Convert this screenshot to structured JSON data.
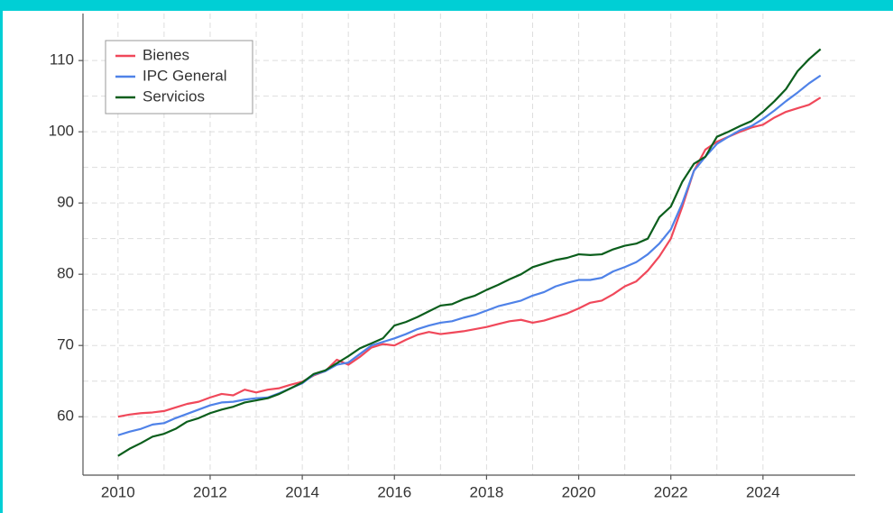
{
  "chart_data": {
    "type": "line",
    "x": [
      2010,
      2010.25,
      2010.5,
      2010.75,
      2011,
      2011.25,
      2011.5,
      2011.75,
      2012,
      2012.25,
      2012.5,
      2012.75,
      2013,
      2013.25,
      2013.5,
      2013.75,
      2014,
      2014.25,
      2014.5,
      2014.75,
      2015,
      2015.25,
      2015.5,
      2015.75,
      2016,
      2016.25,
      2016.5,
      2016.75,
      2017,
      2017.25,
      2017.5,
      2017.75,
      2018,
      2018.25,
      2018.5,
      2018.75,
      2019,
      2019.25,
      2019.5,
      2019.75,
      2020,
      2020.25,
      2020.5,
      2020.75,
      2021,
      2021.25,
      2021.5,
      2021.75,
      2022,
      2022.25,
      2022.5,
      2022.75,
      2023,
      2023.25,
      2023.5,
      2023.75,
      2024,
      2024.25,
      2024.5,
      2024.75,
      2025,
      2025.25
    ],
    "series": [
      {
        "name": "Bienes",
        "color": "#f0485a",
        "values": [
          60.0,
          60.3,
          60.5,
          60.6,
          60.8,
          61.3,
          61.8,
          62.1,
          62.7,
          63.2,
          63.0,
          63.8,
          63.4,
          63.8,
          64.0,
          64.5,
          64.9,
          65.8,
          66.4,
          68.0,
          67.3,
          68.4,
          69.7,
          70.2,
          70.0,
          70.8,
          71.5,
          71.9,
          71.6,
          71.8,
          72.0,
          72.3,
          72.6,
          73.0,
          73.4,
          73.6,
          73.2,
          73.5,
          74.0,
          74.5,
          75.2,
          76.0,
          76.3,
          77.2,
          78.3,
          79.0,
          80.5,
          82.5,
          85.0,
          89.5,
          94.5,
          97.5,
          98.6,
          99.3,
          100.0,
          100.6,
          101.0,
          102.0,
          102.8,
          103.3,
          103.8,
          104.8
        ]
      },
      {
        "name": "IPC General",
        "color": "#4f82e8",
        "values": [
          57.4,
          57.9,
          58.3,
          58.9,
          59.1,
          59.8,
          60.4,
          61.0,
          61.6,
          62.0,
          62.1,
          62.4,
          62.6,
          62.7,
          63.3,
          64.0,
          64.7,
          65.9,
          66.4,
          67.3,
          67.6,
          68.8,
          70.0,
          70.5,
          71.0,
          71.6,
          72.3,
          72.8,
          73.2,
          73.4,
          73.9,
          74.3,
          74.9,
          75.5,
          75.9,
          76.3,
          77.0,
          77.5,
          78.3,
          78.8,
          79.2,
          79.2,
          79.5,
          80.4,
          81.0,
          81.7,
          82.8,
          84.3,
          86.3,
          90.0,
          94.5,
          96.5,
          98.3,
          99.3,
          100.2,
          100.8,
          101.8,
          103.0,
          104.3,
          105.5,
          106.8,
          107.9
        ]
      },
      {
        "name": "Servicios",
        "color": "#0b5e1c",
        "values": [
          54.5,
          55.5,
          56.3,
          57.2,
          57.6,
          58.3,
          59.3,
          59.8,
          60.5,
          61.0,
          61.4,
          62.0,
          62.3,
          62.6,
          63.2,
          64.0,
          64.8,
          66.0,
          66.5,
          67.5,
          68.5,
          69.6,
          70.3,
          71.0,
          72.8,
          73.3,
          74.0,
          74.8,
          75.6,
          75.8,
          76.5,
          77.0,
          77.8,
          78.5,
          79.3,
          80.0,
          81.0,
          81.5,
          82.0,
          82.3,
          82.8,
          82.7,
          82.8,
          83.5,
          84.0,
          84.3,
          85.0,
          88.0,
          89.5,
          93.0,
          95.5,
          96.5,
          99.3,
          100.0,
          100.8,
          101.5,
          102.8,
          104.3,
          106.0,
          108.5,
          110.2,
          111.6
        ]
      }
    ],
    "xlim": [
      2009.24,
      2026.0
    ],
    "xticks": [
      2010,
      2012,
      2014,
      2016,
      2018,
      2020,
      2022,
      2024
    ],
    "ylim": [
      51.8,
      116.6
    ],
    "yticks": [
      60,
      70,
      80,
      90,
      100,
      110
    ],
    "grid": true,
    "legend": "top-left"
  }
}
